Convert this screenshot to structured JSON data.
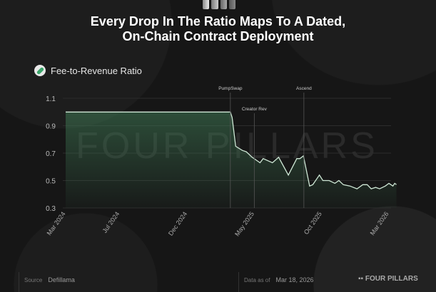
{
  "header": {
    "title_line1": "Every Drop In The Ratio Maps To A Dated,",
    "title_line2": "On-Chain Contract Deployment"
  },
  "legend": {
    "label": "Fee-to-Revenue Ratio",
    "icon": "pill-icon"
  },
  "footer": {
    "source_label": "Source",
    "source_value": "Defillama",
    "date_label": "Data as of",
    "date_value": "Mar 18, 2026",
    "brand": "FOUR PILLARS"
  },
  "watermark": "FOUR PILLARS",
  "colors": {
    "line": "#cfe8d6",
    "fill": "#3f7a55",
    "background": "#161616",
    "grid": "#2c2c2c"
  },
  "chart_data": {
    "type": "area",
    "title": "Every Drop In The Ratio Maps To A Dated, On-Chain Contract Deployment",
    "xlabel": "",
    "ylabel": "",
    "ylim": [
      0.3,
      1.1
    ],
    "yticks": [
      "1.1",
      "0.9",
      "0.7",
      "0.5",
      "0.3"
    ],
    "xticks": [
      {
        "date": "2024-03-01",
        "label": "Mar 2024"
      },
      {
        "date": "2024-07-01",
        "label": "Jul 2024"
      },
      {
        "date": "2024-12-01",
        "label": "Dec 2024"
      },
      {
        "date": "2025-05-01",
        "label": "May 2025"
      },
      {
        "date": "2025-10-01",
        "label": "Oct 2025"
      },
      {
        "date": "2026-03-01",
        "label": "Mar 2026"
      }
    ],
    "xlim": [
      "2024-03-01",
      "2026-03-18"
    ],
    "grid": true,
    "series": [
      {
        "name": "Fee-to-Revenue Ratio",
        "points": [
          [
            "2024-03-01",
            1.0
          ],
          [
            "2025-03-08",
            1.0
          ],
          [
            "2025-03-12",
            0.96
          ],
          [
            "2025-03-20",
            0.75
          ],
          [
            "2025-04-04",
            0.72
          ],
          [
            "2025-04-13",
            0.71
          ],
          [
            "2025-04-26",
            0.67
          ],
          [
            "2025-05-14",
            0.63
          ],
          [
            "2025-05-21",
            0.66
          ],
          [
            "2025-06-11",
            0.63
          ],
          [
            "2025-06-25",
            0.67
          ],
          [
            "2025-07-17",
            0.54
          ],
          [
            "2025-08-05",
            0.66
          ],
          [
            "2025-08-12",
            0.66
          ],
          [
            "2025-08-20",
            0.68
          ],
          [
            "2025-09-03",
            0.46
          ],
          [
            "2025-09-10",
            0.47
          ],
          [
            "2025-09-25",
            0.54
          ],
          [
            "2025-10-03",
            0.5
          ],
          [
            "2025-10-17",
            0.5
          ],
          [
            "2025-10-30",
            0.48
          ],
          [
            "2025-11-08",
            0.5
          ],
          [
            "2025-11-18",
            0.47
          ],
          [
            "2025-12-03",
            0.46
          ],
          [
            "2025-12-19",
            0.44
          ],
          [
            "2026-01-01",
            0.47
          ],
          [
            "2026-01-11",
            0.47
          ],
          [
            "2026-01-20",
            0.44
          ],
          [
            "2026-01-30",
            0.45
          ],
          [
            "2026-02-08",
            0.44
          ],
          [
            "2026-02-21",
            0.46
          ],
          [
            "2026-03-01",
            0.48
          ],
          [
            "2026-03-10",
            0.46
          ],
          [
            "2026-03-14",
            0.48
          ],
          [
            "2026-03-18",
            0.47
          ]
        ]
      }
    ],
    "annotations": [
      {
        "date": "2025-03-08",
        "label": "PumpSwap"
      },
      {
        "date": "2025-05-01",
        "label": "Creator Rev"
      },
      {
        "date": "2025-08-21",
        "label": "Ascend"
      }
    ]
  }
}
